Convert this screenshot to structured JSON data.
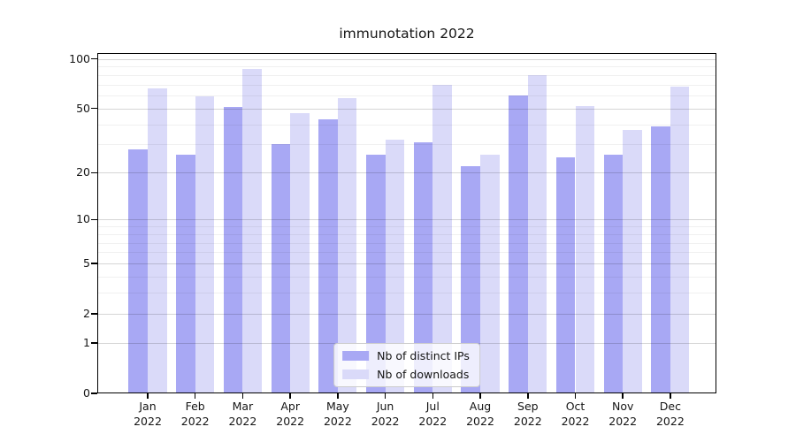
{
  "chart_data": {
    "type": "bar",
    "title": "immunotation 2022",
    "categories": [
      "Jan",
      "Feb",
      "Mar",
      "Apr",
      "May",
      "Jun",
      "Jul",
      "Aug",
      "Sep",
      "Oct",
      "Nov",
      "Dec"
    ],
    "year_label": "2022",
    "series": [
      {
        "name": "Nb of distinct IPs",
        "color": "#a8a8f4",
        "values": [
          28,
          26,
          51,
          30,
          43,
          26,
          31,
          22,
          60,
          25,
          26,
          39
        ]
      },
      {
        "name": "Nb of downloads",
        "color": "#dadaf9",
        "values": [
          66,
          59,
          87,
          47,
          58,
          32,
          70,
          26,
          80,
          52,
          37,
          68
        ]
      }
    ],
    "xlabel": "",
    "ylabel": "",
    "yscale": "log1p",
    "yticks": [
      0,
      1,
      2,
      5,
      10,
      20,
      50,
      100
    ],
    "yticks_minor": [
      3,
      4,
      6,
      7,
      8,
      9,
      30,
      40,
      60,
      70,
      80,
      90
    ],
    "ylim": [
      0,
      108
    ],
    "grid": true,
    "legend_position": "lower center",
    "colors": {
      "axis": "#000000",
      "grid_major": "rgba(0,0,0,0.16)",
      "grid_minor": "rgba(0,0,0,0.06)",
      "background": "#ffffff"
    }
  }
}
